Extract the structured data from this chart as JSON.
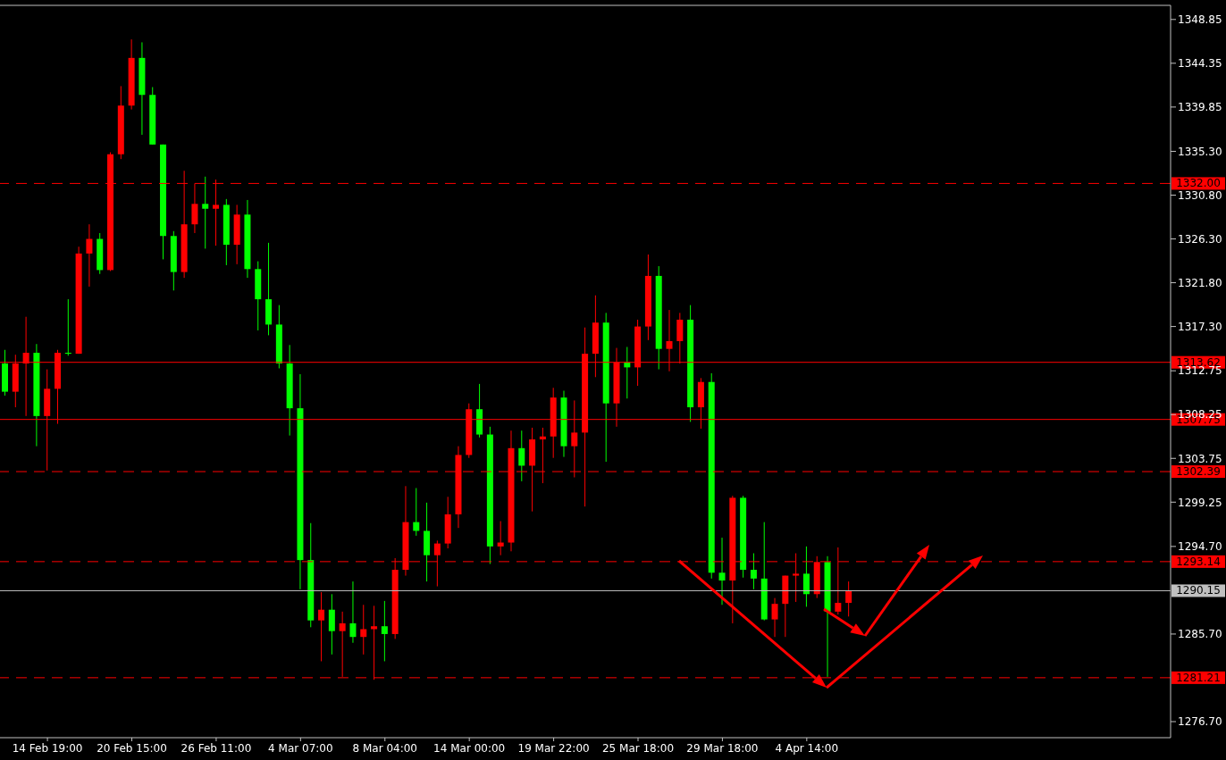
{
  "chart_data": {
    "type": "candlestick",
    "categories": [
      null,
      null,
      null,
      null,
      "14 Feb 19:00",
      null,
      null,
      null,
      null,
      null,
      null,
      null,
      "20 Feb 15:00",
      null,
      null,
      null,
      null,
      null,
      null,
      null,
      "26 Feb 11:00",
      null,
      null,
      null,
      null,
      null,
      null,
      null,
      "4 Mar 07:00",
      null,
      null,
      null,
      null,
      null,
      null,
      null,
      "8 Mar 04:00",
      null,
      null,
      null,
      null,
      null,
      null,
      null,
      "14 Mar 00:00",
      null,
      null,
      null,
      null,
      null,
      null,
      null,
      "19 Mar 22:00",
      null,
      null,
      null,
      null,
      null,
      null,
      null,
      "25 Mar 18:00",
      null,
      null,
      null,
      null,
      null,
      null,
      null,
      "29 Mar 18:00",
      null,
      null,
      null,
      null,
      null,
      null,
      null,
      "4 Apr 14:00",
      null,
      null,
      null,
      null,
      null,
      null,
      null,
      null,
      null,
      null,
      null,
      null,
      null,
      null,
      null,
      null,
      null,
      null,
      null,
      null,
      null,
      null,
      null,
      null,
      null,
      null,
      null,
      null,
      null,
      null,
      null,
      null,
      null,
      null
    ],
    "ohlc": [
      [
        1313.5,
        1314.9,
        1310.2,
        1310.6
      ],
      [
        1310.6,
        1314.4,
        1309.0,
        1313.5
      ],
      [
        1313.5,
        1318.3,
        1308.1,
        1314.6
      ],
      [
        1314.6,
        1315.5,
        1305.0,
        1308.1
      ],
      [
        1308.1,
        1312.9,
        1302.5,
        1310.9
      ],
      [
        1310.9,
        1314.9,
        1307.3,
        1314.6
      ],
      [
        1314.6,
        1320.1,
        1314.3,
        1314.5
      ],
      [
        1314.5,
        1325.5,
        1314.5,
        1324.8
      ],
      [
        1324.8,
        1327.8,
        1321.4,
        1326.3
      ],
      [
        1326.3,
        1326.9,
        1322.7,
        1323.1
      ],
      [
        1323.1,
        1335.2,
        1323.0,
        1335.0
      ],
      [
        1335.0,
        1342.0,
        1334.5,
        1340.0
      ],
      [
        1340.0,
        1346.8,
        1339.6,
        1344.9
      ],
      [
        1344.9,
        1346.5,
        1337.0,
        1341.1
      ],
      [
        1341.1,
        1341.9,
        1336.0,
        1336.0
      ],
      [
        1336.0,
        1336.0,
        1324.2,
        1326.6
      ],
      [
        1326.6,
        1327.1,
        1321.0,
        1322.9
      ],
      [
        1322.9,
        1333.3,
        1322.3,
        1327.8
      ],
      [
        1327.8,
        1332.0,
        1326.9,
        1329.9
      ],
      [
        1329.9,
        1332.7,
        1325.3,
        1329.4
      ],
      [
        1329.4,
        1332.4,
        1325.6,
        1329.8
      ],
      [
        1329.8,
        1330.4,
        1323.6,
        1325.7
      ],
      [
        1325.7,
        1329.8,
        1323.7,
        1328.8
      ],
      [
        1328.8,
        1330.3,
        1322.3,
        1323.2
      ],
      [
        1323.2,
        1324.0,
        1316.9,
        1320.1
      ],
      [
        1320.1,
        1325.9,
        1316.4,
        1317.5
      ],
      [
        1317.5,
        1319.5,
        1313.0,
        1313.5
      ],
      [
        1313.5,
        1315.4,
        1306.1,
        1308.9
      ],
      [
        1308.9,
        1312.4,
        1290.3,
        1293.3
      ],
      [
        1293.3,
        1297.1,
        1286.4,
        1287.1
      ],
      [
        1287.1,
        1290.0,
        1282.9,
        1288.2
      ],
      [
        1288.2,
        1289.8,
        1283.6,
        1286.0
      ],
      [
        1286.0,
        1288.0,
        1281.3,
        1286.8
      ],
      [
        1286.8,
        1291.1,
        1284.8,
        1285.4
      ],
      [
        1285.4,
        1288.7,
        1283.6,
        1286.2
      ],
      [
        1286.2,
        1288.6,
        1281.0,
        1286.5
      ],
      [
        1286.5,
        1289.1,
        1282.9,
        1285.7
      ],
      [
        1285.7,
        1293.5,
        1285.2,
        1292.3
      ],
      [
        1292.3,
        1300.9,
        1291.7,
        1297.2
      ],
      [
        1297.2,
        1300.7,
        1295.8,
        1296.3
      ],
      [
        1296.3,
        1299.2,
        1291.1,
        1293.8
      ],
      [
        1293.8,
        1295.3,
        1290.6,
        1295.0
      ],
      [
        1295.0,
        1299.8,
        1294.5,
        1298.0
      ],
      [
        1298.0,
        1305.0,
        1296.6,
        1304.1
      ],
      [
        1304.1,
        1309.4,
        1303.8,
        1308.8
      ],
      [
        1308.8,
        1311.4,
        1305.9,
        1306.2
      ],
      [
        1306.2,
        1307.0,
        1292.9,
        1294.7
      ],
      [
        1294.7,
        1297.3,
        1293.8,
        1295.1
      ],
      [
        1295.1,
        1306.6,
        1294.2,
        1304.8
      ],
      [
        1304.8,
        1306.6,
        1301.4,
        1303.0
      ],
      [
        1303.0,
        1306.9,
        1298.3,
        1305.7
      ],
      [
        1305.7,
        1306.9,
        1301.2,
        1306.0
      ],
      [
        1306.0,
        1311.0,
        1303.8,
        1310.0
      ],
      [
        1310.0,
        1310.7,
        1303.9,
        1305.0
      ],
      [
        1305.0,
        1309.7,
        1301.8,
        1306.4
      ],
      [
        1306.4,
        1317.2,
        1298.8,
        1314.5
      ],
      [
        1314.5,
        1320.5,
        1312.1,
        1317.7
      ],
      [
        1317.7,
        1318.7,
        1303.4,
        1309.4
      ],
      [
        1309.4,
        1315.1,
        1307.0,
        1313.6
      ],
      [
        1313.6,
        1315.2,
        1309.9,
        1313.1
      ],
      [
        1313.1,
        1318.0,
        1311.2,
        1317.3
      ],
      [
        1317.3,
        1324.7,
        1315.9,
        1322.5
      ],
      [
        1322.5,
        1323.5,
        1312.9,
        1315.0
      ],
      [
        1315.0,
        1319.0,
        1312.7,
        1315.8
      ],
      [
        1315.8,
        1318.7,
        1313.5,
        1318.0
      ],
      [
        1318.0,
        1319.5,
        1307.5,
        1309.0
      ],
      [
        1309.0,
        1312.0,
        1306.8,
        1311.6
      ],
      [
        1311.6,
        1312.5,
        1291.4,
        1292.0
      ],
      [
        1292.0,
        1295.6,
        1288.7,
        1291.2
      ],
      [
        1291.2,
        1299.9,
        1286.8,
        1299.7
      ],
      [
        1299.7,
        1299.9,
        1291.5,
        1292.3
      ],
      [
        1292.3,
        1294.0,
        1290.3,
        1291.4
      ],
      [
        1291.4,
        1297.2,
        1287.1,
        1287.2
      ],
      [
        1287.2,
        1289.4,
        1285.4,
        1288.8
      ],
      [
        1288.8,
        1291.7,
        1285.4,
        1291.7
      ],
      [
        1291.7,
        1294.0,
        1289.0,
        1291.9
      ],
      [
        1291.9,
        1294.7,
        1288.5,
        1289.8
      ],
      [
        1289.8,
        1293.7,
        1289.4,
        1293.1
      ],
      [
        1293.1,
        1293.7,
        1281.3,
        1288.0
      ],
      [
        1288.0,
        1294.6,
        1287.7,
        1288.9
      ],
      [
        1288.9,
        1291.1,
        1287.5,
        1290.1
      ],
      null,
      null,
      null,
      null,
      null,
      null,
      null,
      null,
      null,
      null,
      null,
      null,
      null,
      null,
      null,
      null,
      null,
      null,
      null,
      null,
      null,
      null,
      null,
      null,
      null,
      null,
      null,
      null,
      null,
      null
    ],
    "colors": [
      "#00ff00",
      "#ff0000",
      "#ff0000",
      "#00ff00",
      "#ff0000",
      "#ff0000",
      "#00ff00",
      "#ff0000",
      "#ff0000",
      "#00ff00",
      "#ff0000",
      "#ff0000",
      "#ff0000",
      "#00ff00",
      "#00ff00",
      "#00ff00",
      "#00ff00",
      "#ff0000",
      "#ff0000",
      "#00ff00",
      "#ff0000",
      "#00ff00",
      "#ff0000",
      "#00ff00",
      "#00ff00",
      "#00ff00",
      "#00ff00",
      "#00ff00",
      "#00ff00",
      "#00ff00",
      "#ff0000",
      "#00ff00",
      "#ff0000",
      "#00ff00",
      "#ff0000",
      "#ff0000",
      "#00ff00",
      "#ff0000",
      "#ff0000",
      "#00ff00",
      "#00ff00",
      "#ff0000",
      "#ff0000",
      "#ff0000",
      "#ff0000",
      "#00ff00",
      "#00ff00",
      "#ff0000",
      "#ff0000",
      "#00ff00",
      "#ff0000",
      "#ff0000",
      "#ff0000",
      "#00ff00",
      "#ff0000",
      "#ff0000",
      "#ff0000",
      "#00ff00",
      "#ff0000",
      "#00ff00",
      "#ff0000",
      "#ff0000",
      "#00ff00",
      "#ff0000",
      "#ff0000",
      "#00ff00",
      "#ff0000",
      "#00ff00",
      "#00ff00",
      "#ff0000",
      "#00ff00",
      "#00ff00",
      "#00ff00",
      "#ff0000",
      "#ff0000",
      "#ff0000",
      "#00ff00",
      "#ff0000",
      "#00ff00",
      "#ff0000",
      "#ff0000",
      null,
      null,
      null,
      null,
      null,
      null,
      null,
      null,
      null,
      null,
      null,
      null,
      null,
      null,
      null,
      null,
      null,
      null,
      null,
      null,
      null,
      null,
      null,
      null,
      null,
      null,
      null,
      null,
      null,
      null
    ],
    "ylim": [
      1275.05,
      1350.3
    ],
    "yticks": [
      1348.85,
      1344.35,
      1339.85,
      {
        "value": 1335.3,
        "label": "1335.30"
      },
      {
        "value": 1330.8,
        "label": "1330.80"
      },
      {
        "value": 1326.3,
        "label": "1326.30"
      },
      {
        "value": 1321.8,
        "label": "1321.80"
      },
      {
        "value": 1317.3,
        "label": "1317.30"
      },
      1312.75,
      1308.25,
      1303.75,
      1299.25,
      {
        "value": 1294.7,
        "label": "1294.70"
      },
      {
        "value": 1285.7,
        "label": "1285.70"
      },
      {
        "value": 1276.7,
        "label": "1276.70"
      }
    ],
    "ref_lines": [
      {
        "axis": "y",
        "value": 1332.0,
        "label": "1332.00",
        "color": "#ff0000",
        "line_style": "dashed"
      },
      {
        "axis": "y",
        "value": 1313.62,
        "label": "1313.62",
        "color": "#ff0000",
        "line_style": "solid"
      },
      {
        "axis": "y",
        "value": 1307.75,
        "label": "1307.75",
        "color": "#ff0000",
        "line_style": "solid"
      },
      {
        "axis": "y",
        "value": 1302.39,
        "label": "1302.39",
        "color": "#ff0000",
        "line_style": "dashed"
      },
      {
        "axis": "y",
        "value": 1293.14,
        "label": "1293.14",
        "color": "#ff0000",
        "line_style": "dashed"
      },
      {
        "axis": "y",
        "value": 1290.15,
        "label": "1290.15",
        "color": "#c0c0c0",
        "line_style": "solid"
      },
      {
        "axis": "y",
        "value": 1281.21,
        "label": "1281.21",
        "color": "#ff0000",
        "line_style": "dashed"
      }
    ]
  }
}
